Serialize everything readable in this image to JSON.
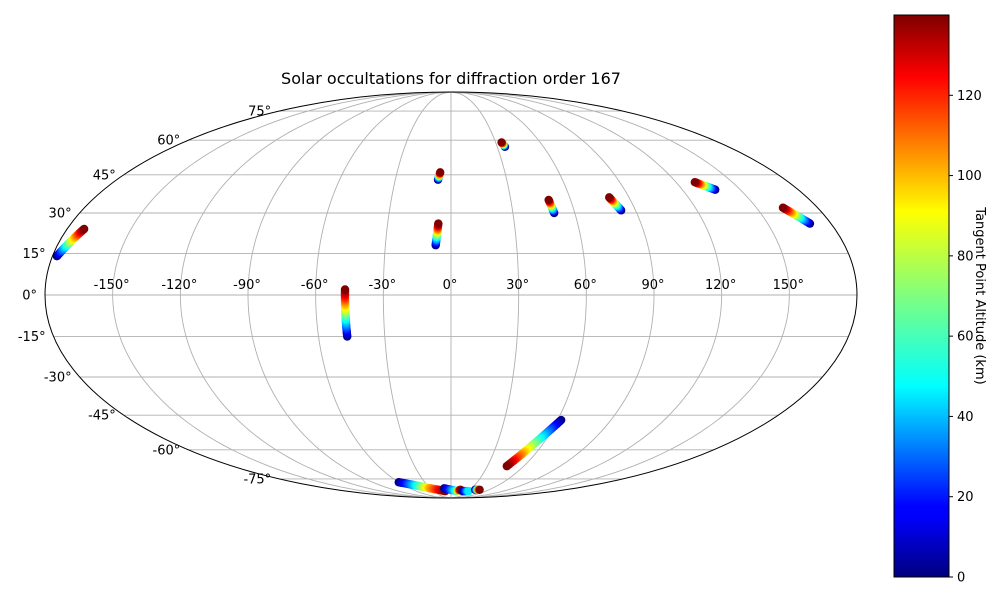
{
  "chart_data": {
    "type": "scatter",
    "projection": "mollweide",
    "title": "Solar occultations for diffraction order 167",
    "xlabel": "",
    "ylabel": "",
    "grid": true,
    "x_ticks": [
      "-150°",
      "-120°",
      "-90°",
      "-60°",
      "-30°",
      "0°",
      "30°",
      "60°",
      "90°",
      "120°",
      "150°"
    ],
    "y_ticks": [
      "75°",
      "60°",
      "45°",
      "30°",
      "15°",
      "0°",
      "-15°",
      "-30°",
      "-45°",
      "-60°",
      "-75°"
    ],
    "colorbar": {
      "label": "Tangent Point Altitude (km)",
      "ticks": [
        "0",
        "20",
        "40",
        "60",
        "80",
        "100",
        "120"
      ],
      "range": [
        0,
        140
      ],
      "colormap": "jet"
    },
    "series": [
      {
        "points": [
          {
            "lon": -178,
            "lat": 14,
            "alt": 0
          },
          {
            "lon": -172,
            "lat": 24,
            "alt": 140
          }
        ]
      },
      {
        "points": [
          {
            "lon": -47,
            "lat": -15,
            "alt": 0
          },
          {
            "lon": -47,
            "lat": 2,
            "alt": 140
          }
        ]
      },
      {
        "points": [
          {
            "lon": -7,
            "lat": 18,
            "alt": 0
          },
          {
            "lon": -6,
            "lat": 26,
            "alt": 140
          }
        ]
      },
      {
        "points": [
          {
            "lon": -7,
            "lat": 43,
            "alt": 0
          },
          {
            "lon": -6,
            "lat": 46,
            "alt": 140
          }
        ]
      },
      {
        "points": [
          {
            "lon": 35,
            "lat": 57,
            "alt": 0
          },
          {
            "lon": 34,
            "lat": 59,
            "alt": 140
          }
        ]
      },
      {
        "points": [
          {
            "lon": 50,
            "lat": 30,
            "alt": 0
          },
          {
            "lon": 49,
            "lat": 35,
            "alt": 140
          }
        ]
      },
      {
        "points": [
          {
            "lon": 83,
            "lat": 31,
            "alt": 0
          },
          {
            "lon": 80,
            "lat": 36,
            "alt": 140
          }
        ]
      },
      {
        "points": [
          {
            "lon": 137,
            "lat": 39,
            "alt": 0
          },
          {
            "lon": 130,
            "lat": 42,
            "alt": 140
          }
        ]
      },
      {
        "points": [
          {
            "lon": 170,
            "lat": 26,
            "alt": 0
          },
          {
            "lon": 163,
            "lat": 32,
            "alt": 140
          }
        ]
      },
      {
        "points": [
          {
            "lon": 62,
            "lat": -47,
            "alt": 0
          },
          {
            "lon": 46,
            "lat": -68,
            "alt": 140
          }
        ]
      },
      {
        "points": [
          {
            "lon": -60,
            "lat": -77,
            "alt": 0
          },
          {
            "lon": -30,
            "lat": -81,
            "alt": 100
          },
          {
            "lon": -10,
            "lat": -83,
            "alt": 140
          }
        ]
      },
      {
        "points": [
          {
            "lon": -10,
            "lat": -81,
            "alt": 0
          },
          {
            "lon": 10,
            "lat": -83,
            "alt": 60
          },
          {
            "lon": 15,
            "lat": -82,
            "alt": 140
          }
        ]
      },
      {
        "points": [
          {
            "lon": 20,
            "lat": -83,
            "alt": 0
          },
          {
            "lon": 30,
            "lat": -83,
            "alt": 50
          }
        ]
      },
      {
        "points": [
          {
            "lon": 38,
            "lat": -82,
            "alt": 0
          },
          {
            "lon": 45,
            "lat": -82,
            "alt": 140
          }
        ]
      }
    ]
  }
}
